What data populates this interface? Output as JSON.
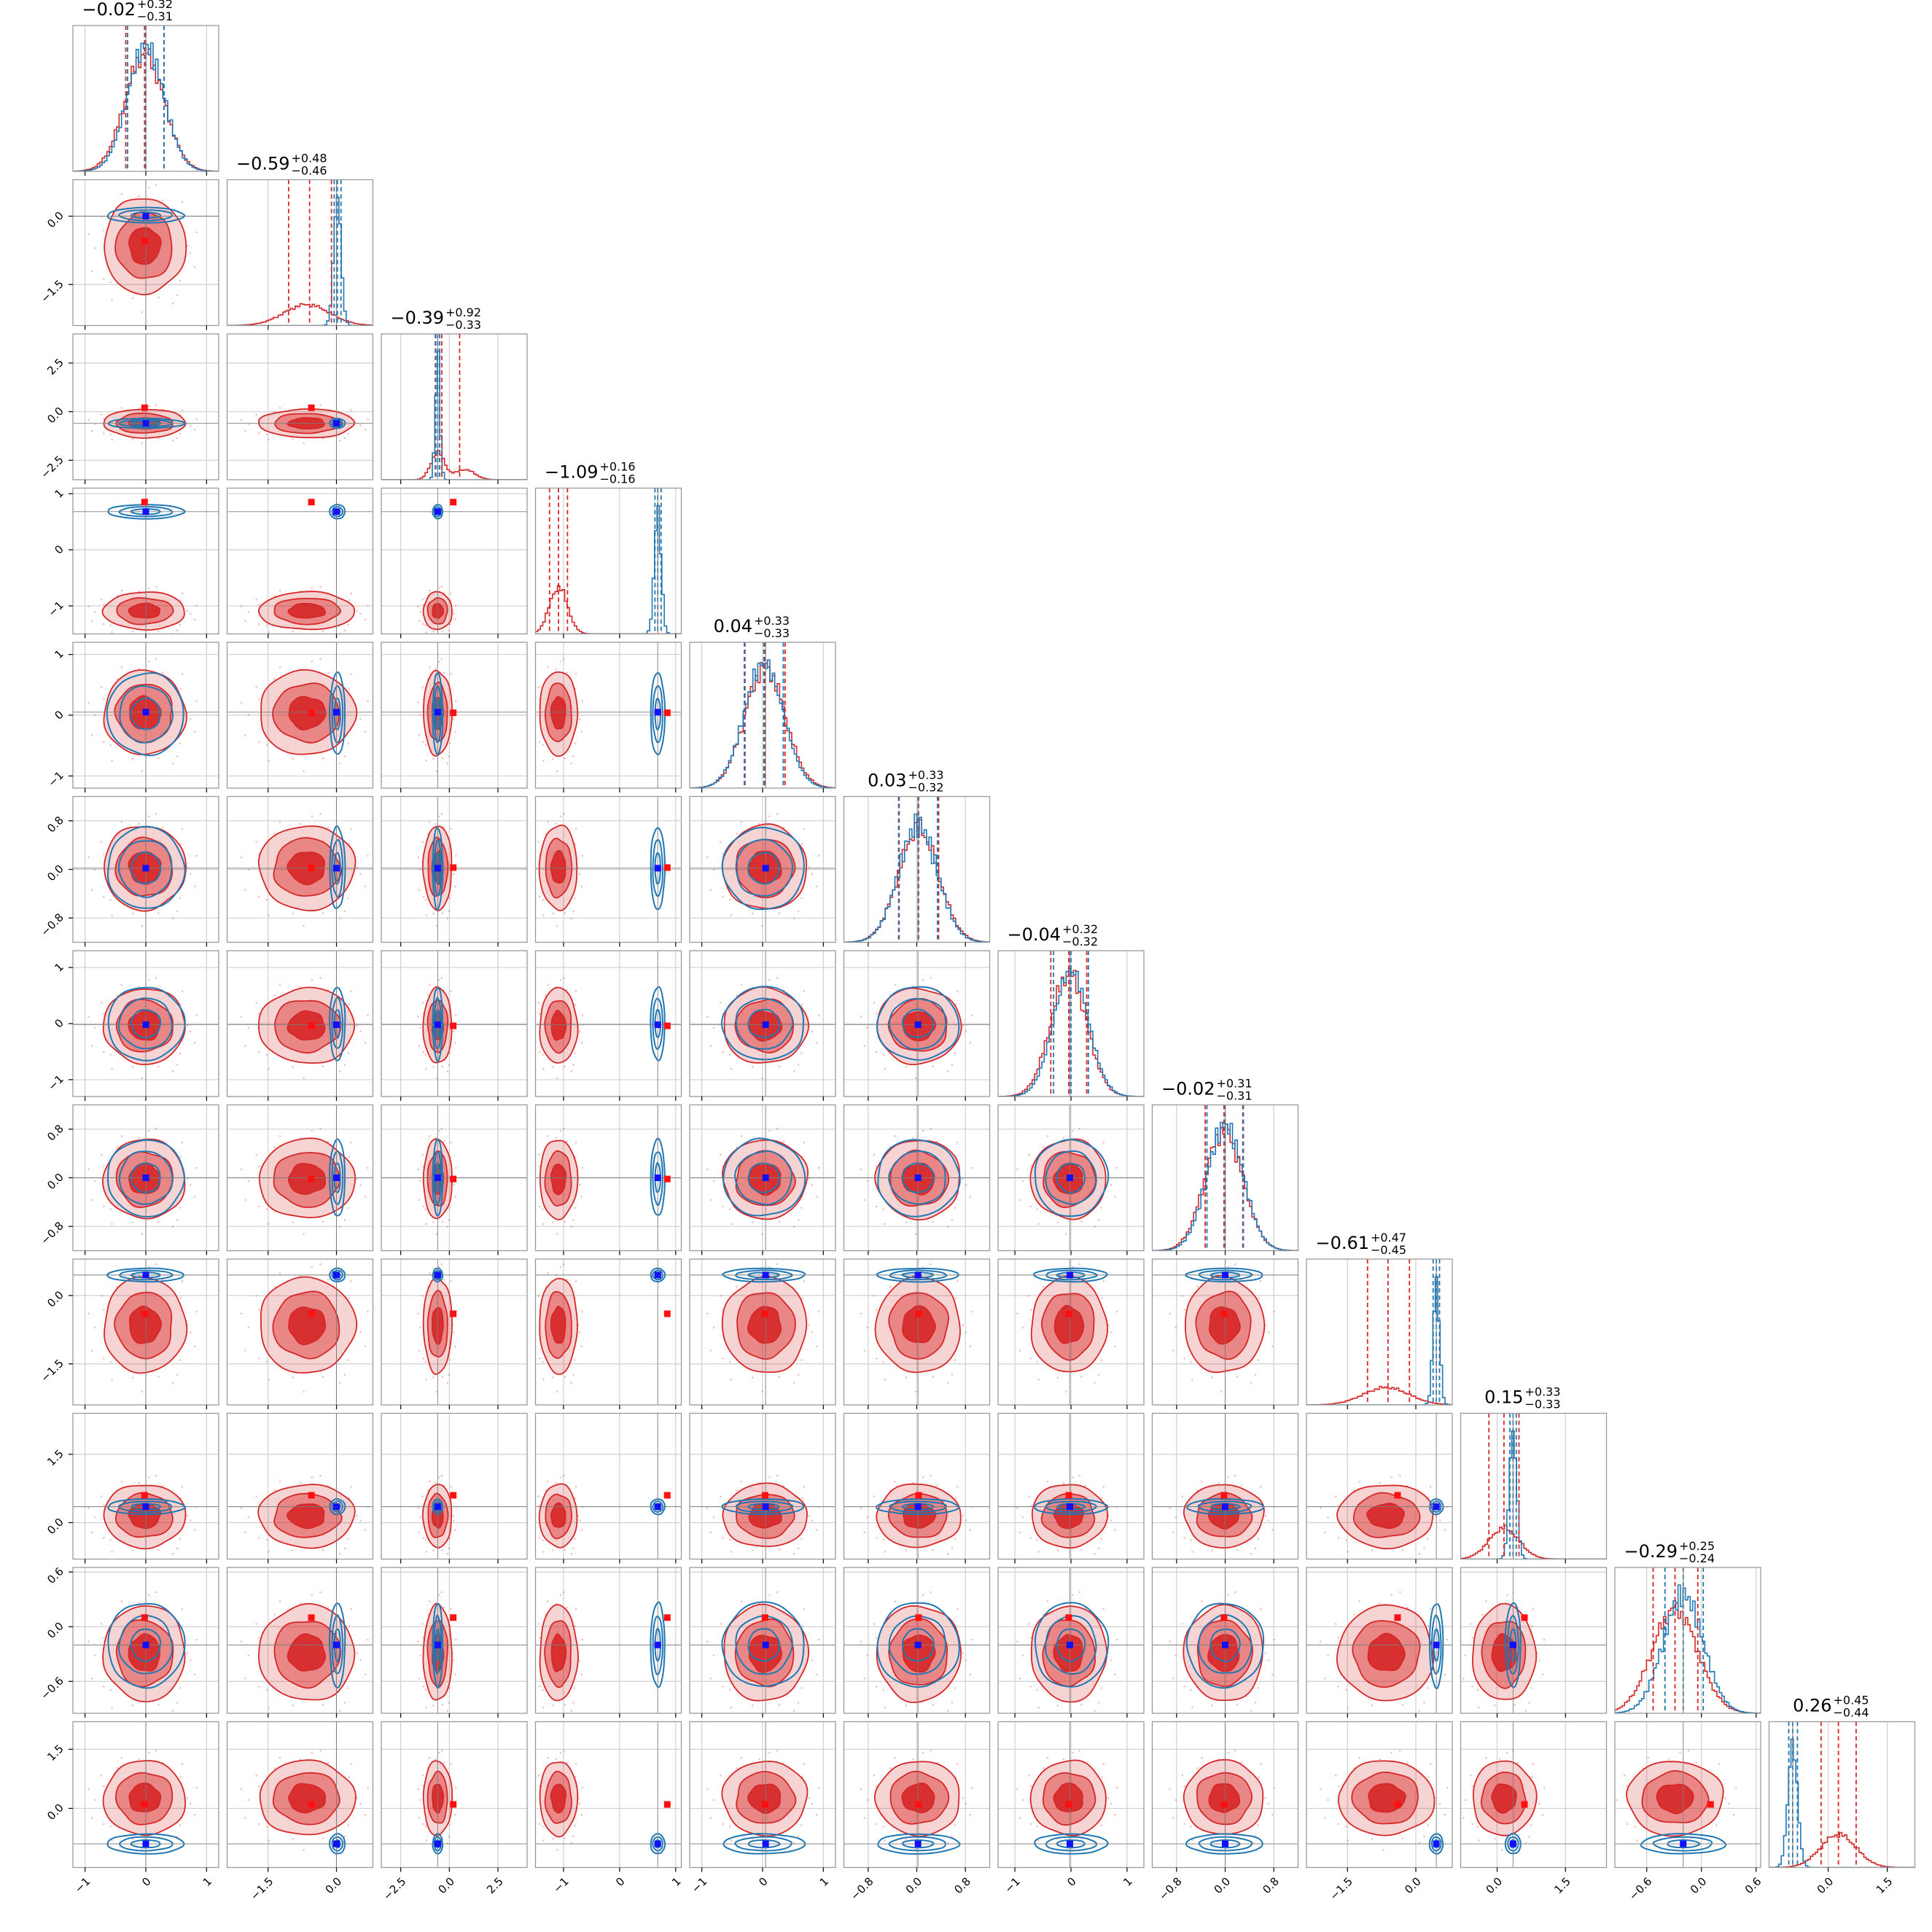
{
  "chart_data": {
    "type": "corner",
    "n_params": 12,
    "grid": true,
    "colors": {
      "red": "#d62728",
      "blue": "#1f77b4",
      "truth": "#1010ff",
      "dark_red": "#8b1a1a"
    },
    "series": [
      {
        "color": "red",
        "style": "filled contours + histograms"
      },
      {
        "color": "blue",
        "style": "line contours + histograms"
      }
    ],
    "params": [
      {
        "title": "-0.02",
        "plus": "+0.32",
        "minus": "-0.31",
        "range": [
          -1.2,
          1.2
        ],
        "ticks": [
          -1,
          0,
          1
        ],
        "tick_labels": [
          "−1",
          "0",
          "1"
        ],
        "red": {
          "mu": -0.02,
          "sd": 0.32,
          "q": [
            -0.33,
            -0.02,
            0.3
          ]
        },
        "blue": {
          "mu": 0.0,
          "sd": 0.3,
          "q": [
            -0.3,
            0.0,
            0.3
          ]
        },
        "truth": 0.0
      },
      {
        "title": "-0.59",
        "plus": "+0.48",
        "minus": "-0.46",
        "range": [
          -2.4,
          0.8
        ],
        "ticks": [
          -1.5,
          0.0
        ],
        "tick_labels": [
          "−1.5",
          "0.0"
        ],
        "red": {
          "mu": -0.65,
          "sd": 0.5,
          "q": [
            -1.05,
            -0.59,
            -0.11
          ]
        },
        "blue": {
          "mu": 0.02,
          "sd": 0.08,
          "q": [
            -0.05,
            0.02,
            0.1
          ]
        },
        "truth": 0.0,
        "red_marker": -0.55
      },
      {
        "title": "-0.39",
        "plus": "+0.92",
        "minus": "-0.33",
        "range": [
          -3.5,
          4.0
        ],
        "ticks": [
          -2.5,
          0.0,
          2.5
        ],
        "tick_labels": [
          "−2.5",
          "0.0",
          "2.5"
        ],
        "red": {
          "mu": -0.6,
          "sd": 0.35,
          "mu2": 0.8,
          "sd2": 0.5,
          "w2": 0.35,
          "q": [
            -0.72,
            -0.39,
            0.53
          ]
        },
        "blue": {
          "mu": -0.6,
          "sd": 0.12,
          "q": [
            -0.7,
            -0.6,
            -0.5
          ]
        },
        "truth": -0.6,
        "red_marker": 0.2
      },
      {
        "title": "-1.09",
        "plus": "+0.16",
        "minus": "-0.16",
        "range": [
          -1.5,
          1.1
        ],
        "ticks": [
          -1,
          0,
          1
        ],
        "tick_labels": [
          "−1",
          "0",
          "1"
        ],
        "red": {
          "mu": -1.09,
          "sd": 0.16,
          "q": [
            -1.25,
            -1.09,
            -0.93
          ]
        },
        "blue": {
          "mu": 0.68,
          "sd": 0.06,
          "q": [
            0.63,
            0.68,
            0.74
          ]
        },
        "truth": 0.68,
        "red_marker": 0.85
      },
      {
        "title": "0.04",
        "plus": "+0.33",
        "minus": "-0.33",
        "range": [
          -1.2,
          1.2
        ],
        "ticks": [
          -1,
          0,
          1
        ],
        "tick_labels": [
          "−1",
          "0",
          "1"
        ],
        "red": {
          "mu": 0.04,
          "sd": 0.33,
          "q": [
            -0.29,
            0.04,
            0.37
          ]
        },
        "blue": {
          "mu": 0.02,
          "sd": 0.32,
          "q": [
            -0.3,
            0.02,
            0.34
          ]
        },
        "truth": 0.05
      },
      {
        "title": "0.03",
        "plus": "+0.33",
        "minus": "-0.32",
        "range": [
          -1.2,
          1.2
        ],
        "ticks": [
          -0.8,
          0.0,
          0.8
        ],
        "tick_labels": [
          "−0.8",
          "0.0",
          "0.8"
        ],
        "red": {
          "mu": 0.03,
          "sd": 0.33,
          "q": [
            -0.29,
            0.03,
            0.36
          ]
        },
        "blue": {
          "mu": 0.02,
          "sd": 0.32,
          "q": [
            -0.3,
            0.02,
            0.34
          ]
        },
        "truth": 0.02
      },
      {
        "title": "-0.04",
        "plus": "+0.32",
        "minus": "-0.32",
        "range": [
          -1.3,
          1.3
        ],
        "ticks": [
          -1,
          0,
          1
        ],
        "tick_labels": [
          "−1",
          "0",
          "1"
        ],
        "red": {
          "mu": -0.04,
          "sd": 0.32,
          "q": [
            -0.36,
            -0.04,
            0.28
          ]
        },
        "blue": {
          "mu": 0.0,
          "sd": 0.31,
          "q": [
            -0.31,
            0.0,
            0.31
          ]
        },
        "truth": -0.02
      },
      {
        "title": "-0.02",
        "plus": "+0.31",
        "minus": "-0.31",
        "range": [
          -1.2,
          1.2
        ],
        "ticks": [
          -0.8,
          0.0,
          0.8
        ],
        "tick_labels": [
          "−0.8",
          "0.0",
          "0.8"
        ],
        "red": {
          "mu": -0.02,
          "sd": 0.31,
          "q": [
            -0.33,
            -0.02,
            0.29
          ]
        },
        "blue": {
          "mu": 0.0,
          "sd": 0.3,
          "q": [
            -0.3,
            0.0,
            0.3
          ]
        },
        "truth": 0.0
      },
      {
        "title": "-0.61",
        "plus": "+0.47",
        "minus": "-0.45",
        "range": [
          -2.4,
          0.8
        ],
        "ticks": [
          -1.5,
          0.0
        ],
        "tick_labels": [
          "−1.5",
          "0.0"
        ],
        "red": {
          "mu": -0.65,
          "sd": 0.5,
          "q": [
            -1.06,
            -0.61,
            -0.14
          ]
        },
        "blue": {
          "mu": 0.45,
          "sd": 0.07,
          "q": [
            0.38,
            0.45,
            0.52
          ]
        },
        "truth": 0.45,
        "red_marker": -0.4
      },
      {
        "title": "0.15",
        "plus": "+0.33",
        "minus": "-0.33",
        "range": [
          -0.8,
          2.4
        ],
        "ticks": [
          0.0,
          1.5
        ],
        "tick_labels": [
          "0.0",
          "1.5"
        ],
        "red": {
          "mu": 0.15,
          "sd": 0.33,
          "q": [
            -0.18,
            0.15,
            0.48
          ]
        },
        "blue": {
          "mu": 0.35,
          "sd": 0.08,
          "q": [
            0.28,
            0.35,
            0.42
          ]
        },
        "truth": 0.35,
        "red_marker": 0.6
      },
      {
        "title": "-0.29",
        "plus": "+0.25",
        "minus": "-0.24",
        "range": [
          -0.95,
          0.65
        ],
        "ticks": [
          -0.6,
          0.0,
          0.6
        ],
        "tick_labels": [
          "−0.6",
          "0.0",
          "0.6"
        ],
        "red": {
          "mu": -0.29,
          "sd": 0.25,
          "q": [
            -0.53,
            -0.29,
            -0.04
          ]
        },
        "blue": {
          "mu": -0.2,
          "sd": 0.22,
          "q": [
            -0.4,
            -0.2,
            0.02
          ]
        },
        "truth": -0.2,
        "red_marker": 0.1
      },
      {
        "title": "0.26",
        "plus": "+0.45",
        "minus": "-0.44",
        "range": [
          -1.5,
          2.2
        ],
        "ticks": [
          0.0,
          1.5
        ],
        "tick_labels": [
          "0.0",
          "1.5"
        ],
        "red": {
          "mu": 0.26,
          "sd": 0.45,
          "q": [
            -0.18,
            0.26,
            0.71
          ]
        },
        "blue": {
          "mu": -0.9,
          "sd": 0.12,
          "q": [
            -1.0,
            -0.9,
            -0.78
          ]
        },
        "truth": -0.9,
        "red_marker": 0.1
      }
    ]
  }
}
